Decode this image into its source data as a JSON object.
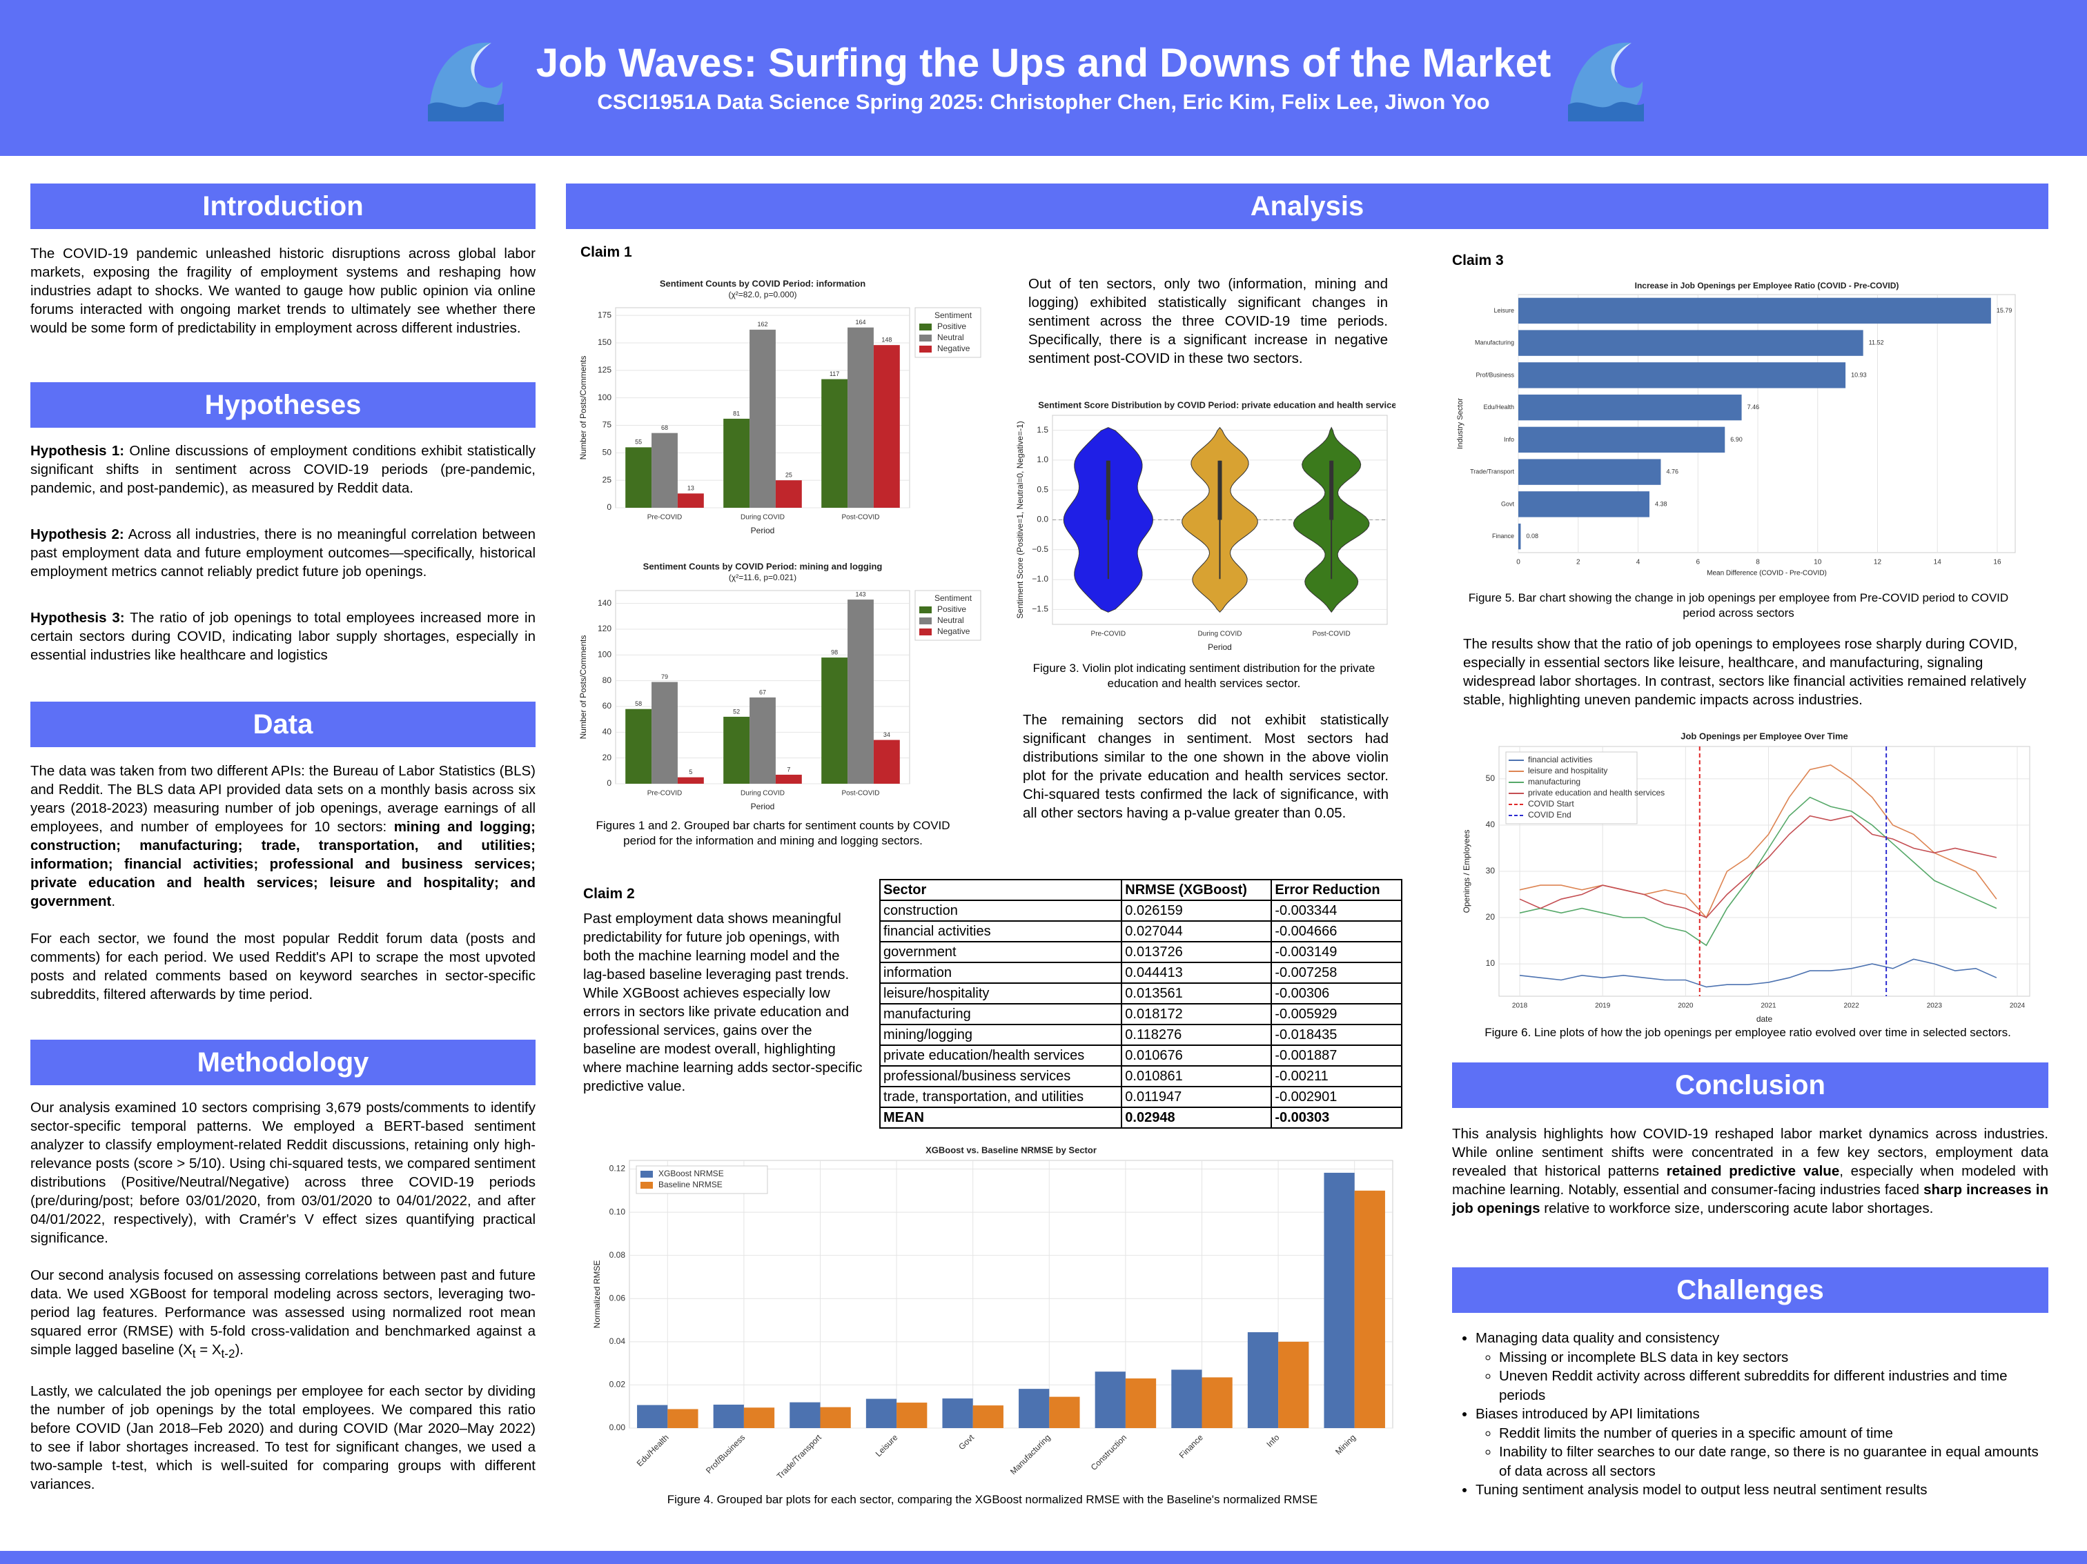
{
  "header": {
    "title": "Job Waves: Surfing the Ups and Downs of the Market",
    "subtitle": "CSCI1951A Data Science Spring 2025: Christopher Chen, Eric Kim, Felix Lee, Jiwon Yoo"
  },
  "introduction": {
    "heading": "Introduction",
    "text": "The COVID-19 pandemic unleashed historic disruptions across global labor markets, exposing the fragility of employment systems and reshaping how industries adapt to shocks. We wanted to gauge how public opinion via online forums interacted with ongoing market trends to ultimately see whether there would be some form of predictability in employment across different industries."
  },
  "hypotheses": {
    "heading": "Hypotheses",
    "items": [
      {
        "label": "Hypothesis 1:",
        "text": " Online discussions of employment conditions exhibit statistically significant shifts in sentiment across COVID-19 periods (pre-pandemic, pandemic, and post-pandemic), as measured by Reddit data."
      },
      {
        "label": "Hypothesis 2:",
        "text": " Across all industries, there is no meaningful correlation between past employment data and future employment outcomes—specifically, historical employment metrics cannot reliably predict future job openings."
      },
      {
        "label": "Hypothesis 3:",
        "text": " The ratio of job openings to total employees increased more in certain sectors during COVID, indicating labor supply shortages, especially in essential industries like healthcare and logistics"
      }
    ]
  },
  "data_section": {
    "heading": "Data",
    "paragraphs": [
      [
        "The data was taken from two different APIs: the Bureau of Labor Statistics (BLS) and Reddit. The BLS data API provided data sets on a monthly basis across six years (2018-2023) measuring number of job openings, average earnings of all employees, and number of employees for 10 sectors: ",
        "mining and logging; construction; manufacturing; trade, transportation, and utilities; information; financial activities; professional and business services; private education and health services; leisure and hospitality; and government",
        "."
      ],
      [
        "For each sector, we found the most popular Reddit forum data (posts and comments) for each period. We used Reddit's API to scrape the most upvoted posts and related comments based on keyword searches in sector-specific subreddits, filtered afterwards by time period."
      ]
    ]
  },
  "methodology": {
    "heading": "Methodology",
    "paragraphs": [
      [
        "Our analysis examined 10 sectors comprising 3,679 posts/comments to identify sector-specific temporal patterns. We employed a BERT-based sentiment analyzer to classify employment-related Reddit discussions, retaining only high-relevance posts (score > 5/10). Using chi-squared tests, we compared sentiment distributions (Positive/Neutral/Negative) across three COVID-19 periods (pre/during/post; before 03/01/2020, from 03/01/2020 to 04/01/2022, and after 04/01/2022, respectively), with Cramér's V effect sizes quantifying practical significance."
      ],
      [
        "Our second analysis focused on assessing correlations between past and future data. We used XGBoost for temporal modeling across sectors, leveraging two-period lag features. Performance was assessed using normalized root mean squared error (RMSE) with 5-fold cross-validation and benchmarked against a simple lagged baseline (X",
        "t",
        " = X",
        "t-2",
        ")."
      ],
      [
        "Lastly, we calculated the job openings per employee for each sector by dividing the number of job openings by the total employees. We compared this ratio before COVID (Jan 2018–Feb 2020) and during COVID (Mar 2020–May 2022) to see if labor shortages increased. To test for significant changes, we used a two-sample t-test, which is well-suited for comparing groups with different variances."
      ]
    ]
  },
  "analysis": {
    "heading": "Analysis",
    "claim1": {
      "label": "Claim 1",
      "text": "Out of ten sectors, only two (information, mining and logging) exhibited statistically significant changes in sentiment across the three COVID-19 time periods. Specifically, there is a significant increase in negative sentiment post-COVID in these two sectors.",
      "caption12": "Figures 1 and 2. Grouped bar charts for sentiment counts by COVID period for the information and mining and logging sectors.",
      "caption3": "Figure 3. Violin plot indicating sentiment distribution for the private education and health services sector.",
      "text2": "The remaining sectors did not exhibit statistically significant changes in sentiment. Most sectors had distributions similar to the one shown in the above violin plot for the private education and health services sector. Chi-squared tests confirmed the lack of significance, with all other sectors having a p-value greater than 0.05."
    },
    "claim2": {
      "label": "Claim 2",
      "text": "Past employment data shows meaningful predictability for future job openings, with both the machine learning model and the lag-based baseline leveraging past trends. While XGBoost achieves especially low errors in sectors like private education and professional services, gains over the baseline are modest overall, highlighting where machine learning adds sector-specific predictive value.",
      "caption4": "Figure 4. Grouped bar plots for each sector, comparing the XGBoost normalized RMSE with the Baseline's normalized RMSE"
    },
    "claim3": {
      "label": "Claim 3",
      "caption5": "Figure 5. Bar chart showing the change in job openings per employee from Pre-COVID period to COVID period across sectors",
      "text": "The results show that the ratio of job openings to employees rose sharply during COVID, especially in essential sectors like leisure, healthcare, and manufacturing, signaling widespread labor shortages. In contrast, sectors like financial activities remained relatively stable, highlighting uneven pandemic impacts across industries.",
      "caption6": "Figure 6. Line plots of how the job openings per employee ratio evolved over time in selected sectors."
    }
  },
  "table": {
    "header": [
      "Sector",
      "NRMSE (XGBoost)",
      "Error Reduction"
    ],
    "rows": [
      [
        "construction",
        "0.026159",
        "-0.003344"
      ],
      [
        "financial activities",
        "0.027044",
        "-0.004666"
      ],
      [
        "government",
        "0.013726",
        "-0.003149"
      ],
      [
        "information",
        "0.044413",
        "-0.007258"
      ],
      [
        "leisure/hospitality",
        "0.013561",
        "-0.00306"
      ],
      [
        "manufacturing",
        "0.018172",
        "-0.005929"
      ],
      [
        "mining/logging",
        "0.118276",
        "-0.018435"
      ],
      [
        "private education/health services",
        "0.010676",
        "-0.001887"
      ],
      [
        "professional/business services",
        "0.010861",
        "-0.00211"
      ],
      [
        "trade, transportation, and utilities",
        "0.011947",
        "-0.002901"
      ],
      [
        "MEAN",
        "0.02948",
        "-0.00303"
      ]
    ]
  },
  "conclusion": {
    "heading": "Conclusion",
    "paragraph": [
      "This analysis highlights how COVID-19 reshaped labor market dynamics across industries. While online sentiment shifts were concentrated in a few key sectors, employment data revealed that historical patterns ",
      "retained predictive value",
      ", especially when modeled with machine learning. Notably, essential and consumer-facing industries faced ",
      "sharp increases in job openings",
      " relative to workforce size, underscoring acute labor shortages."
    ]
  },
  "challenges": {
    "heading": "Challenges",
    "items": [
      {
        "text": "Managing data quality and consistency",
        "subitems": [
          "Missing or incomplete BLS data in key sectors",
          "Uneven Reddit activity across different subreddits for different industries and time periods"
        ]
      },
      {
        "text": "Biases introduced by API limitations",
        "subitems": [
          "Reddit limits the number of queries in a specific amount of time",
          "Inability to filter searches to our date range, so there is no guarantee in equal amounts of data across all sectors"
        ]
      },
      {
        "text": "Tuning sentiment analysis model to output less neutral sentiment results",
        "subitems": []
      }
    ]
  },
  "chart_data": [
    {
      "type": "bar",
      "title": "Sentiment Counts by COVID Period: information",
      "subtitle": "(χ²=82.0, p=0.000)",
      "xlabel": "Period",
      "ylabel": "Number of Posts/Comments",
      "categories": [
        "Pre-COVID",
        "During COVID",
        "Post-COVID"
      ],
      "series": [
        {
          "name": "Positive",
          "color": "#41701f",
          "values": [
            55,
            81,
            117
          ]
        },
        {
          "name": "Neutral",
          "color": "#808080",
          "values": [
            68,
            162,
            164
          ]
        },
        {
          "name": "Negative",
          "color": "#c0262c",
          "values": [
            13,
            25,
            148
          ]
        }
      ],
      "ylim": [
        0,
        182
      ],
      "yticks": [
        0,
        25,
        50,
        75,
        100,
        125,
        150,
        175
      ],
      "grid": true,
      "bar_labels": true,
      "legend": "outside right",
      "legend_title": "Sentiment"
    },
    {
      "type": "bar",
      "title": "Sentiment Counts by COVID Period: mining and logging",
      "subtitle": "(χ²=11.6, p=0.021)",
      "xlabel": "Period",
      "ylabel": "Number of Posts/Comments",
      "categories": [
        "Pre-COVID",
        "During COVID",
        "Post-COVID"
      ],
      "series": [
        {
          "name": "Positive",
          "color": "#41701f",
          "values": [
            58,
            52,
            98
          ]
        },
        {
          "name": "Neutral",
          "color": "#808080",
          "values": [
            79,
            67,
            143
          ]
        },
        {
          "name": "Negative",
          "color": "#c0262c",
          "values": [
            5,
            7,
            34
          ]
        }
      ],
      "ylim": [
        0,
        150
      ],
      "yticks": [
        0,
        20,
        40,
        60,
        80,
        100,
        120,
        140
      ],
      "grid": true,
      "bar_labels": true,
      "legend": "outside right",
      "legend_title": "Sentiment"
    },
    {
      "type": "violin",
      "title": "Sentiment Score Distribution by COVID Period: private education and health services",
      "xlabel": "Period",
      "ylabel": "Sentiment Score (Positive=1, Neutral=0, Negative=-1)",
      "categories": [
        "Pre-COVID",
        "During COVID",
        "Post-COVID"
      ],
      "colors": [
        "#1f1fe6",
        "#d8a232",
        "#3b7a1c"
      ],
      "ylim": [
        -1.75,
        1.75
      ],
      "yticks": [
        {
          "value": -1.5,
          "label": "−1.5"
        },
        {
          "value": -1.0,
          "label": "−1.0"
        },
        {
          "value": -0.5,
          "label": "−0.5"
        },
        {
          "value": 0,
          "label": "0.0"
        },
        {
          "value": 0.5,
          "label": "0.5"
        },
        {
          "value": 1.0,
          "label": "1.0"
        },
        {
          "value": 1.5,
          "label": "1.5"
        }
      ],
      "grid": true
    },
    {
      "type": "bar",
      "title": "XGBoost vs. Baseline NRMSE by Sector",
      "ylabel": "Normalized RMSE",
      "categories": [
        "Edu/Health",
        "Prof/Business",
        "Trade/Transport",
        "Leisure",
        "Govt",
        "Manufacturing",
        "Construction",
        "Finance",
        "Info",
        "Mining"
      ],
      "series": [
        {
          "name": "XGBoost NRMSE",
          "color": "#4c72b0",
          "values": [
            0.010676,
            0.010861,
            0.011947,
            0.013561,
            0.013726,
            0.018172,
            0.026159,
            0.027044,
            0.044413,
            0.118276
          ]
        },
        {
          "name": "Baseline NRMSE",
          "color": "#e17f24",
          "values": [
            0.0088,
            0.0095,
            0.0097,
            0.0118,
            0.0105,
            0.0145,
            0.023,
            0.0235,
            0.04,
            0.11
          ]
        }
      ],
      "ylim": [
        0,
        0.124
      ],
      "yticks": [
        {
          "value": 0,
          "label": "0.00"
        },
        {
          "value": 0.02,
          "label": "0.02"
        },
        {
          "value": 0.04,
          "label": "0.04"
        },
        {
          "value": 0.06,
          "label": "0.06"
        },
        {
          "value": 0.08,
          "label": "0.08"
        },
        {
          "value": 0.1,
          "label": "0.10"
        },
        {
          "value": 0.12,
          "label": "0.12"
        }
      ],
      "grid": true,
      "grid_x": true,
      "legend": "upper left",
      "xtick_rotation": 45
    },
    {
      "type": "barh",
      "title": "Increase in Job Openings per Employee Ratio (COVID - Pre-COVID)",
      "xlabel": "Mean Difference (COVID - Pre-COVID)",
      "ylabel": "Industry Sector",
      "categories": [
        "Leisure",
        "Manufacturing",
        "Prof/Business",
        "Edu/Health",
        "Info",
        "Trade/Transport",
        "Govt",
        "Finance"
      ],
      "values": [
        15.79,
        11.52,
        10.93,
        7.46,
        6.9,
        4.76,
        4.38,
        0.08
      ],
      "value_labels": [
        "15.79",
        "11.52",
        "10.93",
        "7.46",
        "6.90",
        "4.76",
        "4.38",
        "0.08"
      ],
      "color": "#4a72b0",
      "xlim": [
        0,
        16.6
      ],
      "xticks": [
        0,
        2,
        4,
        6,
        8,
        10,
        12,
        14,
        16
      ],
      "grid": true
    },
    {
      "type": "line",
      "title": "Job Openings per Employee Over Time",
      "xlabel": "date",
      "ylabel": "Openings / Employees",
      "x": [
        2018,
        2018.25,
        2018.5,
        2018.75,
        2019,
        2019.25,
        2019.5,
        2019.75,
        2020,
        2020.25,
        2020.5,
        2020.75,
        2021,
        2021.25,
        2021.5,
        2021.75,
        2022,
        2022.25,
        2022.5,
        2022.75,
        2023,
        2023.25,
        2023.5,
        2023.75
      ],
      "series": [
        {
          "name": "financial activities",
          "color": "#4c72b0",
          "values": [
            7.5,
            7,
            6.5,
            7.5,
            7,
            7.5,
            7,
            6.5,
            6.5,
            5,
            5.5,
            5.5,
            6,
            7,
            8.5,
            8.5,
            9,
            10,
            9,
            11,
            10,
            8.5,
            9,
            7
          ]
        },
        {
          "name": "leisure and hospitality",
          "color": "#dd8452",
          "values": [
            26,
            27,
            27,
            26,
            27,
            26,
            25,
            26,
            25,
            20,
            30,
            33,
            38,
            46,
            52,
            53,
            50,
            46,
            40,
            38,
            34,
            32,
            30,
            24
          ]
        },
        {
          "name": "manufacturing",
          "color": "#55a868",
          "values": [
            21,
            22,
            21,
            22,
            21,
            20,
            20,
            18,
            17,
            14,
            22,
            28,
            35,
            42,
            46,
            44,
            43,
            40,
            36,
            32,
            28,
            26,
            24,
            22
          ]
        },
        {
          "name": "private education and health services",
          "color": "#c44e52",
          "values": [
            24,
            22,
            24,
            25,
            27,
            26,
            25,
            23,
            22,
            20,
            25,
            29,
            33,
            38,
            42,
            41,
            42,
            38,
            37,
            35,
            34,
            35,
            34,
            33
          ]
        }
      ],
      "vlines": [
        {
          "name": "COVID Start",
          "x": 2020.17,
          "color": "#e02828"
        },
        {
          "name": "COVID End",
          "x": 2022.42,
          "color": "#2a2ad0"
        }
      ],
      "xlim": [
        2017.75,
        2024.15
      ],
      "xticks": [
        2018,
        2019,
        2020,
        2021,
        2022,
        2023,
        2024
      ],
      "ylim": [
        3,
        57
      ],
      "yticks": [
        10,
        20,
        30,
        40,
        50
      ],
      "grid": true,
      "legend": "upper left"
    }
  ]
}
